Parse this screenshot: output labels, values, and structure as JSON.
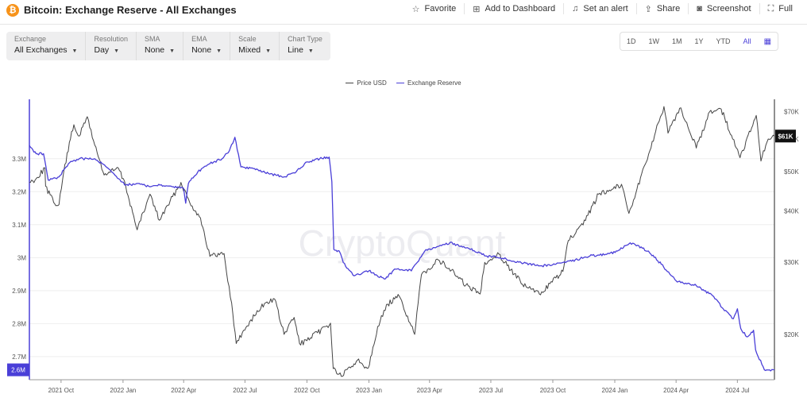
{
  "header": {
    "coin_symbol": "₿",
    "title": "Bitcoin: Exchange Reserve - All Exchanges",
    "actions": [
      {
        "label": "Favorite",
        "icon": "star-icon"
      },
      {
        "label": "Add to Dashboard",
        "icon": "dashboard-icon"
      },
      {
        "label": "Set an alert",
        "icon": "bell-icon"
      },
      {
        "label": "Share",
        "icon": "share-icon"
      },
      {
        "label": "Screenshot",
        "icon": "camera-icon"
      },
      {
        "label": "Full",
        "icon": "fullscreen-icon"
      }
    ]
  },
  "filters": [
    {
      "label": "Exchange",
      "value": "All Exchanges"
    },
    {
      "label": "Resolution",
      "value": "Day"
    },
    {
      "label": "SMA",
      "value": "None"
    },
    {
      "label": "EMA",
      "value": "None"
    },
    {
      "label": "Scale",
      "value": "Mixed"
    },
    {
      "label": "Chart Type",
      "value": "Line"
    }
  ],
  "ranges": [
    "1D",
    "1W",
    "1M",
    "1Y",
    "YTD",
    "All"
  ],
  "active_range": "All",
  "watermark": "CryptoQuant",
  "colors": {
    "price": "#444444",
    "reserve": "#4a3fd8",
    "badge_price": "#111111",
    "badge_reserve": "#4a3fd8",
    "watermark": "#ececf0"
  },
  "chart_data": {
    "type": "line",
    "legend_placement": "top-center",
    "x_ticks": [
      "2021 Oct",
      "2022 Jan",
      "2022 Apr",
      "2022 Jul",
      "2022 Oct",
      "2023 Jan",
      "2023 Apr",
      "2023 Jul",
      "2023 Oct",
      "2024 Jan",
      "2024 Apr",
      "2024 Jul"
    ],
    "x_range": [
      "2021-08-15",
      "2024-08-25"
    ],
    "left_axis": {
      "series": "Exchange Reserve",
      "ticks": [
        "3.3M",
        "3.2M",
        "3.1M",
        "3M",
        "2.9M",
        "2.8M",
        "2.7M"
      ],
      "ylim": [
        2.63,
        3.48
      ],
      "current_label": "2.6M"
    },
    "right_axis": {
      "series": "Price USD",
      "scale": "log",
      "ticks": [
        "$70K",
        "$60K",
        "$50K",
        "$40K",
        "$30K",
        "$20K"
      ],
      "ylim": [
        15500,
        75000
      ],
      "current_label": "$61K"
    },
    "series": [
      {
        "name": "Price USD",
        "axis": "right",
        "points": [
          [
            "2021-08-15",
            47000
          ],
          [
            "2021-08-25",
            48000
          ],
          [
            "2021-09-07",
            51000
          ],
          [
            "2021-09-08",
            46000
          ],
          [
            "2021-09-20",
            42000
          ],
          [
            "2021-09-28",
            41500
          ],
          [
            "2021-10-05",
            50000
          ],
          [
            "2021-10-15",
            60000
          ],
          [
            "2021-10-20",
            65000
          ],
          [
            "2021-10-28",
            61000
          ],
          [
            "2021-11-09",
            68000
          ],
          [
            "2021-11-20",
            58000
          ],
          [
            "2021-12-04",
            49000
          ],
          [
            "2021-12-25",
            51000
          ],
          [
            "2022-01-05",
            46000
          ],
          [
            "2022-01-22",
            36000
          ],
          [
            "2022-02-10",
            44000
          ],
          [
            "2022-02-24",
            38000
          ],
          [
            "2022-03-28",
            47000
          ],
          [
            "2022-04-10",
            42000
          ],
          [
            "2022-04-26",
            38500
          ],
          [
            "2022-05-10",
            31000
          ],
          [
            "2022-05-31",
            31500
          ],
          [
            "2022-06-13",
            22500
          ],
          [
            "2022-06-18",
            19000
          ],
          [
            "2022-07-08",
            21500
          ],
          [
            "2022-07-30",
            23800
          ],
          [
            "2022-08-14",
            24400
          ],
          [
            "2022-08-28",
            20000
          ],
          [
            "2022-09-12",
            22000
          ],
          [
            "2022-09-20",
            19000
          ],
          [
            "2022-10-01",
            19300
          ],
          [
            "2022-11-05",
            21300
          ],
          [
            "2022-11-09",
            16500
          ],
          [
            "2022-11-21",
            15800
          ],
          [
            "2022-12-15",
            17300
          ],
          [
            "2022-12-31",
            16550
          ],
          [
            "2023-01-14",
            20900
          ],
          [
            "2023-01-29",
            23700
          ],
          [
            "2023-02-15",
            24800
          ],
          [
            "2023-03-10",
            20000
          ],
          [
            "2023-03-20",
            28000
          ],
          [
            "2023-04-14",
            30400
          ],
          [
            "2023-04-30",
            29000
          ],
          [
            "2023-05-25",
            26400
          ],
          [
            "2023-06-15",
            25100
          ],
          [
            "2023-06-22",
            30000
          ],
          [
            "2023-07-13",
            31400
          ],
          [
            "2023-08-17",
            26500
          ],
          [
            "2023-09-11",
            25100
          ],
          [
            "2023-10-16",
            28500
          ],
          [
            "2023-10-24",
            33900
          ],
          [
            "2023-11-15",
            37000
          ],
          [
            "2023-12-08",
            44000
          ],
          [
            "2024-01-11",
            46500
          ],
          [
            "2024-01-22",
            39500
          ],
          [
            "2024-02-15",
            52000
          ],
          [
            "2024-03-14",
            72000
          ],
          [
            "2024-03-20",
            62000
          ],
          [
            "2024-04-08",
            71500
          ],
          [
            "2024-05-01",
            57000
          ],
          [
            "2024-05-21",
            70000
          ],
          [
            "2024-06-07",
            71000
          ],
          [
            "2024-06-24",
            60000
          ],
          [
            "2024-07-05",
            54000
          ],
          [
            "2024-07-29",
            68500
          ],
          [
            "2024-08-05",
            53000
          ],
          [
            "2024-08-14",
            59000
          ],
          [
            "2024-08-25",
            61000
          ]
        ]
      },
      {
        "name": "Exchange Reserve",
        "axis": "left",
        "points": [
          [
            "2021-08-15",
            3.34
          ],
          [
            "2021-08-25",
            3.315
          ],
          [
            "2021-09-05",
            3.315
          ],
          [
            "2021-09-12",
            3.235
          ],
          [
            "2021-09-28",
            3.245
          ],
          [
            "2021-10-12",
            3.285
          ],
          [
            "2021-10-28",
            3.3
          ],
          [
            "2021-11-20",
            3.3
          ],
          [
            "2021-12-01",
            3.285
          ],
          [
            "2021-12-15",
            3.26
          ],
          [
            "2022-01-05",
            3.22
          ],
          [
            "2022-01-25",
            3.225
          ],
          [
            "2022-02-10",
            3.215
          ],
          [
            "2022-02-25",
            3.22
          ],
          [
            "2022-03-15",
            3.215
          ],
          [
            "2022-04-01",
            3.21
          ],
          [
            "2022-04-04",
            3.165
          ],
          [
            "2022-04-08",
            3.225
          ],
          [
            "2022-04-22",
            3.26
          ],
          [
            "2022-05-10",
            3.285
          ],
          [
            "2022-05-28",
            3.3
          ],
          [
            "2022-06-08",
            3.325
          ],
          [
            "2022-06-16",
            3.365
          ],
          [
            "2022-06-25",
            3.275
          ],
          [
            "2022-07-15",
            3.27
          ],
          [
            "2022-08-05",
            3.255
          ],
          [
            "2022-08-28",
            3.245
          ],
          [
            "2022-09-15",
            3.26
          ],
          [
            "2022-10-01",
            3.29
          ],
          [
            "2022-10-20",
            3.3
          ],
          [
            "2022-11-03",
            3.305
          ],
          [
            "2022-11-07",
            3.23
          ],
          [
            "2022-11-10",
            3.025
          ],
          [
            "2022-11-18",
            3.02
          ],
          [
            "2022-11-24",
            2.985
          ],
          [
            "2022-12-10",
            2.945
          ],
          [
            "2023-01-01",
            2.96
          ],
          [
            "2023-01-24",
            2.935
          ],
          [
            "2023-02-10",
            2.965
          ],
          [
            "2023-03-05",
            2.96
          ],
          [
            "2023-03-25",
            3.02
          ],
          [
            "2023-04-10",
            3.03
          ],
          [
            "2023-05-01",
            3.045
          ],
          [
            "2023-06-01",
            3.025
          ],
          [
            "2023-06-25",
            3.005
          ],
          [
            "2023-07-15",
            3.0
          ],
          [
            "2023-08-15",
            2.985
          ],
          [
            "2023-09-15",
            2.975
          ],
          [
            "2023-10-20",
            2.985
          ],
          [
            "2023-11-25",
            3.005
          ],
          [
            "2023-12-20",
            3.01
          ],
          [
            "2024-01-05",
            3.02
          ],
          [
            "2024-01-24",
            3.045
          ],
          [
            "2024-02-20",
            3.02
          ],
          [
            "2024-03-10",
            2.98
          ],
          [
            "2024-04-01",
            2.93
          ],
          [
            "2024-05-01",
            2.915
          ],
          [
            "2024-05-25",
            2.885
          ],
          [
            "2024-06-10",
            2.845
          ],
          [
            "2024-06-25",
            2.815
          ],
          [
            "2024-07-01",
            2.845
          ],
          [
            "2024-07-06",
            2.785
          ],
          [
            "2024-07-15",
            2.76
          ],
          [
            "2024-07-25",
            2.78
          ],
          [
            "2024-07-28",
            2.72
          ],
          [
            "2024-08-10",
            2.66
          ],
          [
            "2024-08-25",
            2.66
          ]
        ]
      }
    ]
  }
}
